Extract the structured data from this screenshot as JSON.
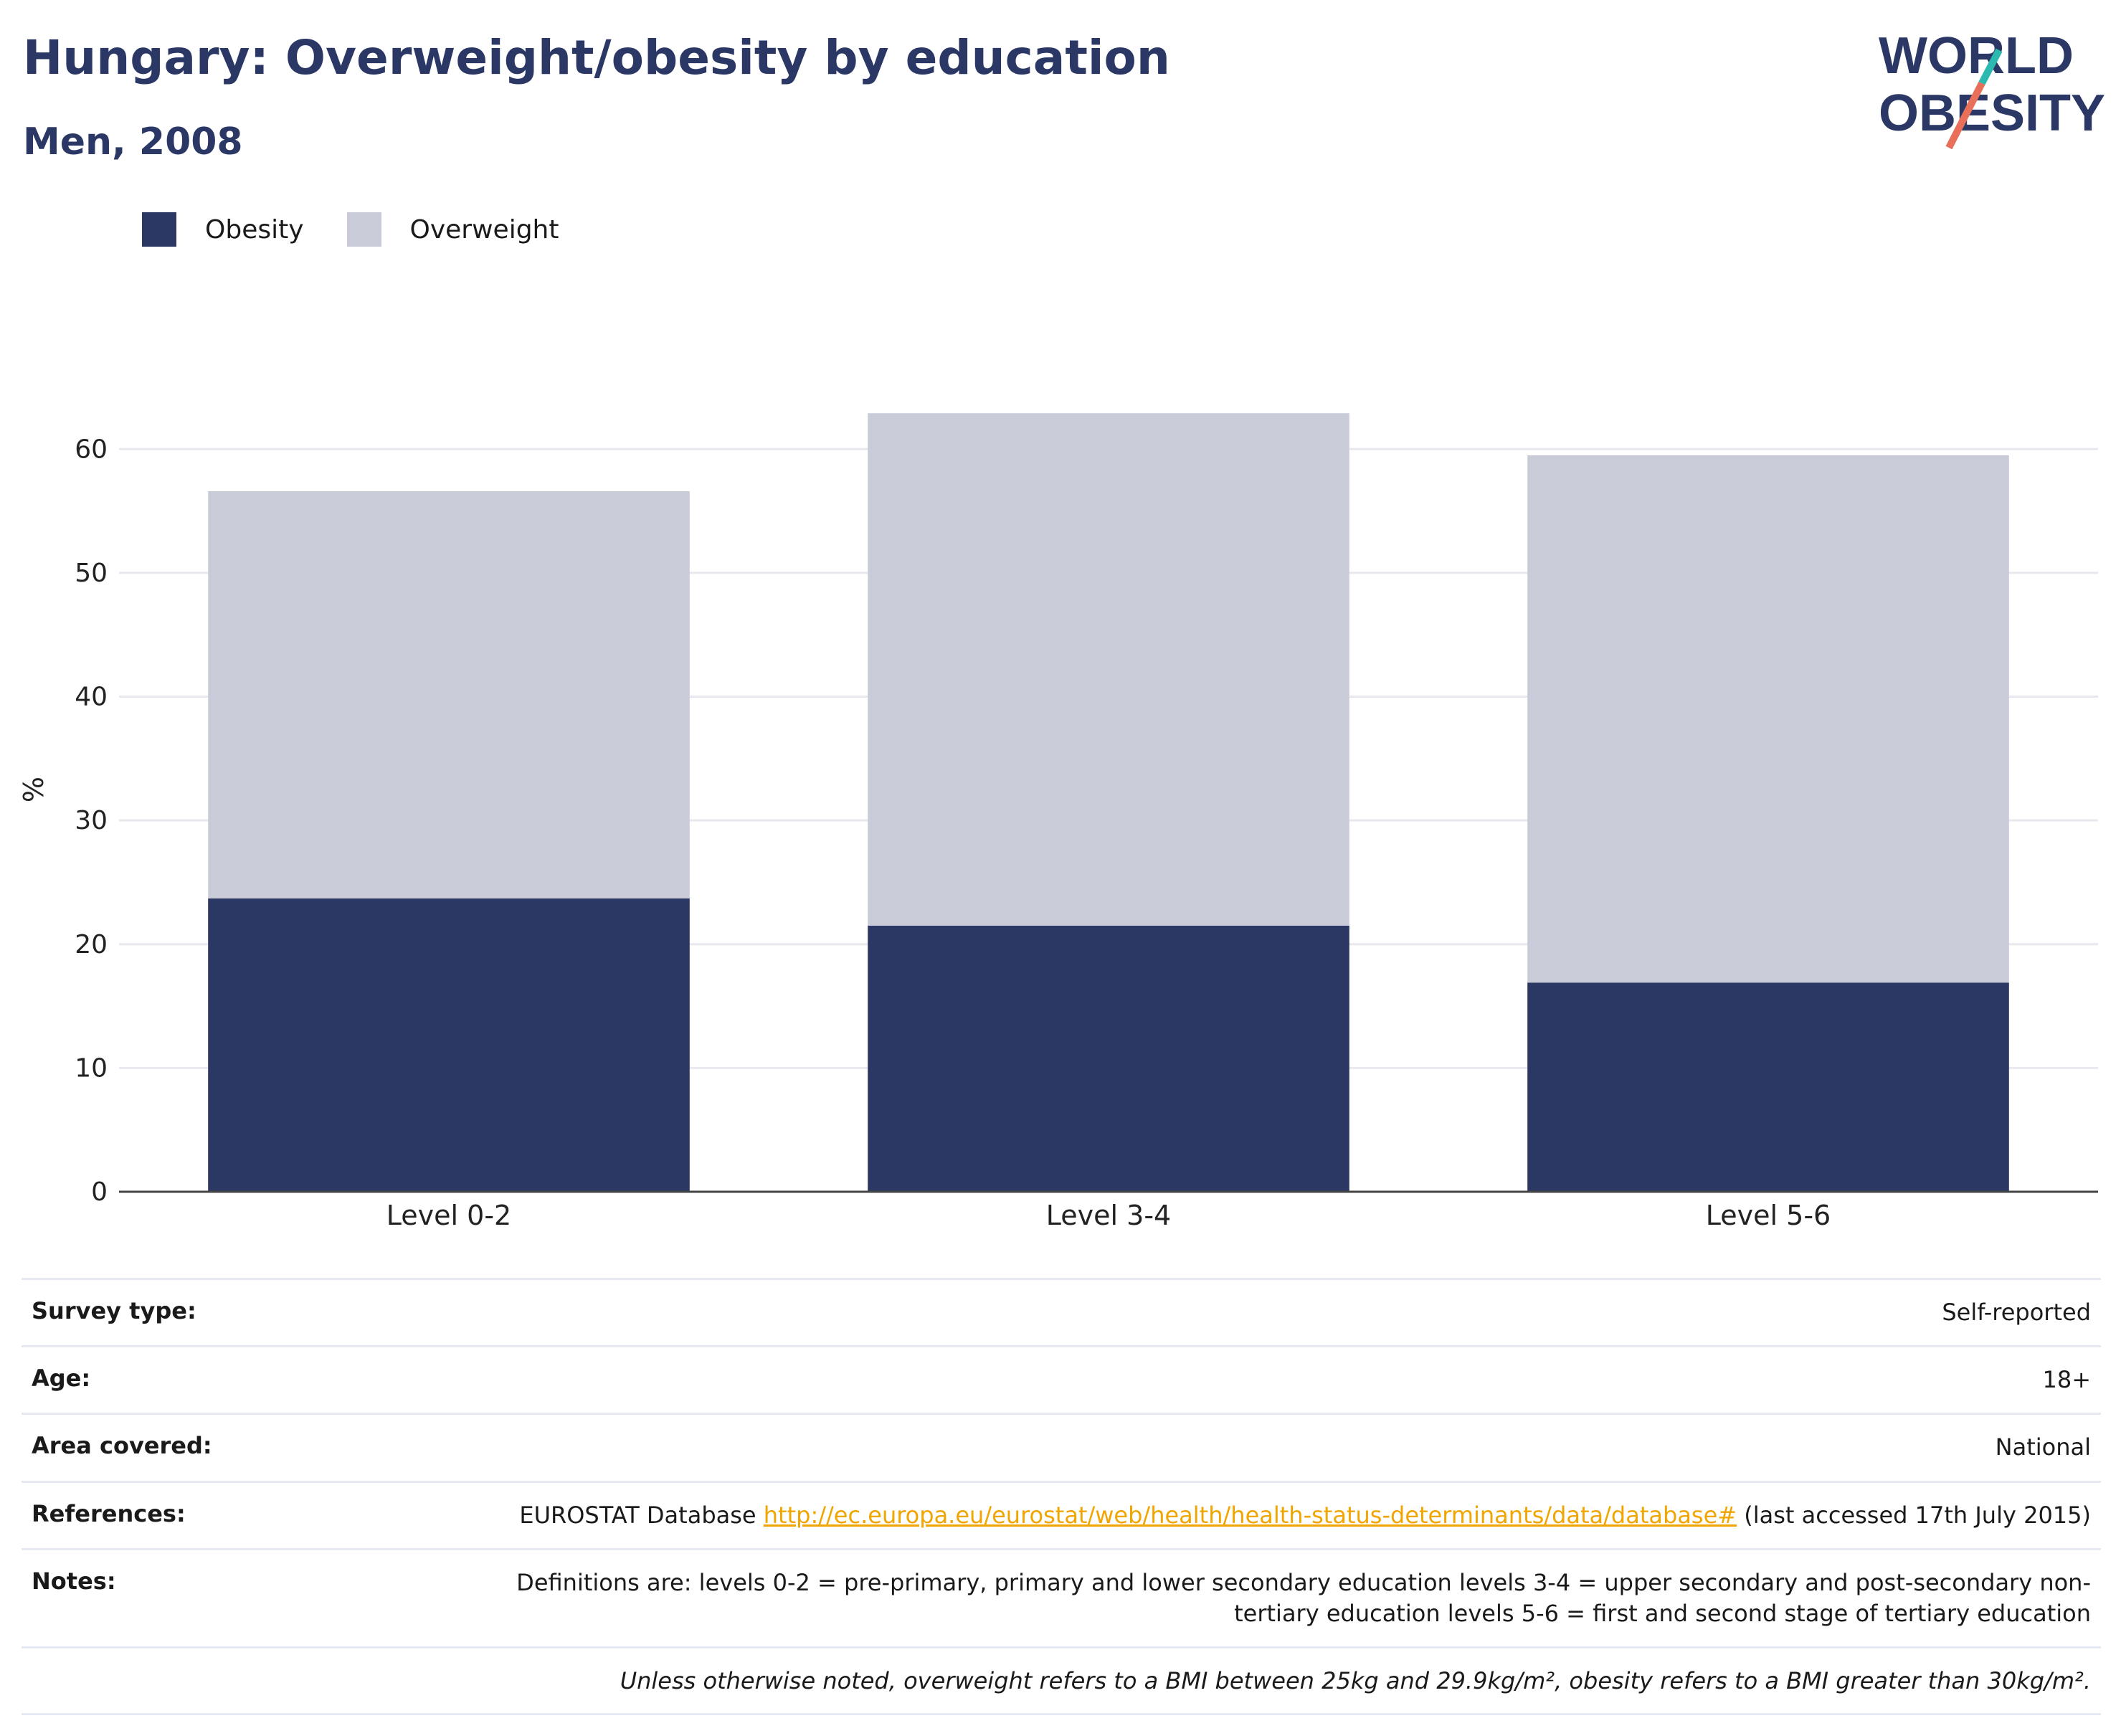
{
  "header": {
    "title": "Hungary: Overweight/obesity by education",
    "subtitle": "Men, 2008",
    "logo_line1": "WORLD",
    "logo_line2": "OBESITY"
  },
  "legend": {
    "items": [
      {
        "label": "Obesity",
        "color": "#2b3864"
      },
      {
        "label": "Overweight",
        "color": "#c9ccd8"
      }
    ]
  },
  "chart_data": {
    "type": "bar",
    "stacked": true,
    "categories": [
      "Level 0-2",
      "Level 3-4",
      "Level 5-6"
    ],
    "series": [
      {
        "name": "Obesity",
        "color": "#2b3864",
        "values": [
          23.7,
          21.5,
          16.9
        ]
      },
      {
        "name": "Overweight",
        "color": "#c9ccd8",
        "values": [
          32.9,
          41.4,
          42.6
        ]
      }
    ],
    "ylabel": "%",
    "ylim": [
      0,
      65
    ],
    "yticks": [
      0,
      10,
      20,
      30,
      40,
      50,
      60
    ],
    "grid": true,
    "legend_position": "top-left"
  },
  "meta": {
    "survey_type_label": "Survey type:",
    "survey_type_value": "Self-reported",
    "age_label": "Age:",
    "age_value": "18+",
    "area_label": "Area covered:",
    "area_value": "National",
    "references_label": "References:",
    "references_prefix": "EUROSTAT Database ",
    "references_link": "http://ec.europa.eu/eurostat/web/health/health-status-determinants/data/database#",
    "references_suffix": " (last accessed 17th July 2015)",
    "notes_label": "Notes:",
    "notes_value": "Definitions are: levels 0-2 = pre-primary, primary and lower secondary education levels 3-4 = upper secondary and post-secondary non-tertiary education levels 5-6 = first and second stage of tertiary education",
    "footnote": "Unless otherwise noted, overweight refers to a BMI between 25kg and 29.9kg/m², obesity refers to a BMI greater than 30kg/m²."
  }
}
